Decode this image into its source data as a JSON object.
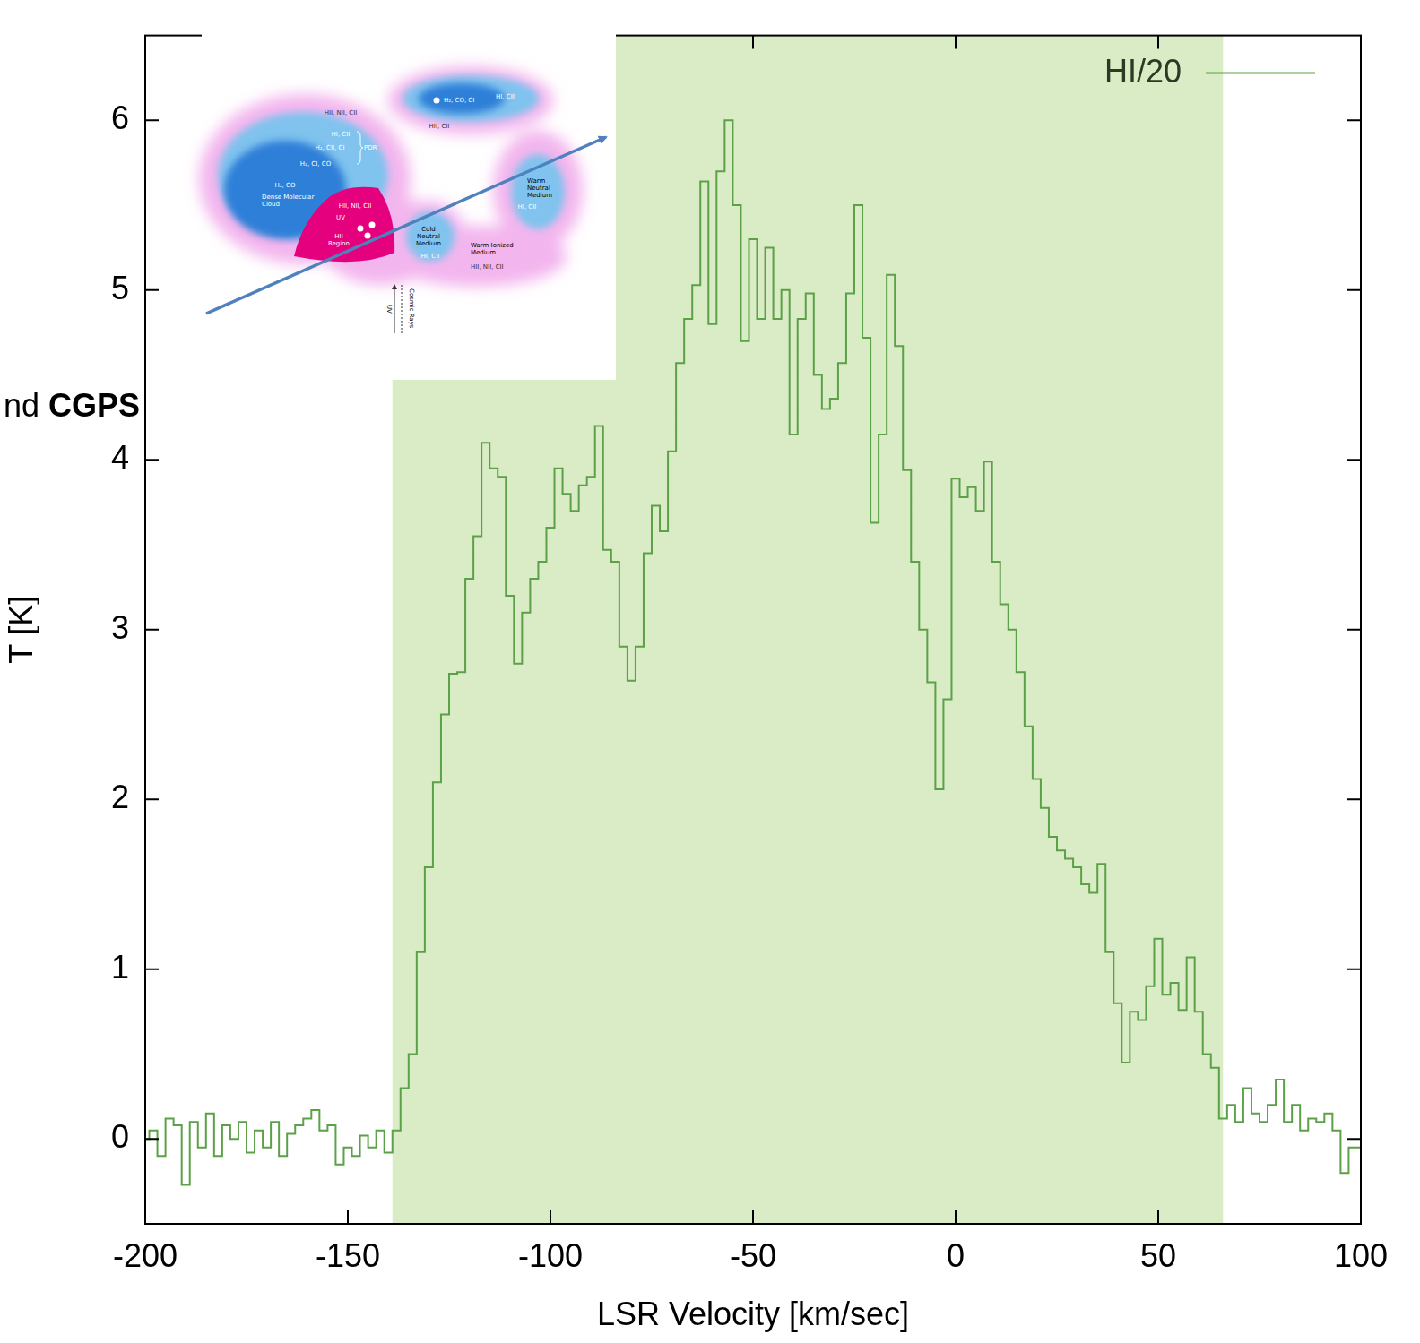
{
  "chart_data": {
    "type": "line",
    "x_label": "LSR Velocity [km/sec]",
    "y_label": "T [K]",
    "x": [
      -200,
      -198,
      -196,
      -194,
      -192,
      -190,
      -188,
      -186,
      -184,
      -182,
      -180,
      -178,
      -176,
      -174,
      -172,
      -170,
      -168,
      -166,
      -164,
      -162,
      -160,
      -158,
      -156,
      -154,
      -152,
      -150,
      -148,
      -146,
      -144,
      -142,
      -140,
      -138,
      -136,
      -134,
      -132,
      -130,
      -128,
      -126,
      -124,
      -122,
      -120,
      -118,
      -116,
      -114,
      -112,
      -110,
      -108,
      -106,
      -104,
      -102,
      -100,
      -98,
      -96,
      -94,
      -92,
      -90,
      -88,
      -86,
      -84,
      -82,
      -80,
      -78,
      -76,
      -74,
      -72,
      -70,
      -68,
      -66,
      -64,
      -62,
      -60,
      -58,
      -56,
      -54,
      -52,
      -50,
      -48,
      -46,
      -44,
      -42,
      -40,
      -38,
      -36,
      -34,
      -32,
      -30,
      -28,
      -26,
      -24,
      -22,
      -20,
      -18,
      -16,
      -14,
      -12,
      -10,
      -8,
      -6,
      -4,
      -2,
      0,
      2,
      4,
      6,
      8,
      10,
      12,
      14,
      16,
      18,
      20,
      22,
      24,
      26,
      28,
      30,
      32,
      34,
      36,
      38,
      40,
      42,
      44,
      46,
      48,
      50,
      52,
      54,
      56,
      58,
      60,
      62,
      64,
      66,
      68,
      70,
      72,
      74,
      76,
      78,
      80,
      82,
      84,
      86,
      88,
      90,
      92,
      94,
      96,
      98,
      100
    ],
    "series": [
      {
        "name": "HI/20",
        "color": "#5ca047",
        "line_style": "steps",
        "values": [
          0.0,
          0.05,
          -0.1,
          0.12,
          0.08,
          -0.27,
          0.1,
          -0.05,
          0.15,
          -0.1,
          0.08,
          0.0,
          0.1,
          -0.08,
          0.05,
          -0.05,
          0.1,
          -0.1,
          0.03,
          0.08,
          0.12,
          0.17,
          0.05,
          0.08,
          -0.15,
          -0.05,
          -0.1,
          0.02,
          -0.05,
          0.05,
          -0.08,
          0.05,
          0.3,
          0.5,
          1.1,
          1.6,
          2.1,
          2.5,
          2.74,
          2.75,
          3.3,
          3.55,
          4.1,
          3.95,
          3.9,
          3.2,
          2.8,
          3.1,
          3.3,
          3.4,
          3.6,
          3.95,
          3.8,
          3.7,
          3.85,
          3.9,
          4.2,
          3.47,
          3.4,
          2.9,
          2.7,
          2.9,
          3.45,
          3.73,
          3.58,
          4.05,
          4.57,
          4.83,
          5.03,
          5.64,
          4.8,
          5.7,
          6.0,
          5.5,
          4.7,
          5.3,
          4.83,
          5.25,
          4.83,
          5.0,
          4.15,
          4.83,
          4.98,
          4.5,
          4.3,
          4.36,
          4.57,
          4.98,
          5.5,
          4.72,
          3.63,
          4.15,
          5.09,
          4.67,
          3.94,
          3.4,
          3.0,
          2.69,
          2.06,
          2.59,
          3.89,
          3.78,
          3.84,
          3.7,
          3.99,
          3.4,
          3.15,
          3.0,
          2.75,
          2.43,
          2.12,
          1.95,
          1.78,
          1.7,
          1.65,
          1.6,
          1.5,
          1.45,
          1.62,
          1.1,
          0.8,
          0.45,
          0.75,
          0.7,
          0.9,
          1.18,
          0.85,
          0.92,
          0.76,
          1.07,
          0.75,
          0.5,
          0.42,
          0.12,
          0.2,
          0.1,
          0.3,
          0.15,
          0.1,
          0.2,
          0.35,
          0.1,
          0.2,
          0.05,
          0.12,
          0.1,
          0.15,
          0.05,
          -0.2,
          -0.05,
          -0.05
        ]
      }
    ],
    "xlim": [
      -200,
      100
    ],
    "xticks": [
      -200,
      -150,
      -100,
      -50,
      0,
      50,
      100
    ],
    "ylim": [
      -0.5,
      6.5
    ],
    "yticks": [
      0,
      1,
      2,
      3,
      4,
      5,
      6
    ],
    "grid": false,
    "legend": "top right",
    "band": {
      "x": [
        -139,
        66
      ],
      "color": "#d9ecc6"
    },
    "annotations": [
      {
        "text": "nd CGPS"
      }
    ]
  },
  "inset": {
    "labels": [
      "HII, NII, CII",
      "H₂, CO, CI",
      "HI, CII",
      "HII, CII",
      "HI, CII",
      "H₂, CII, CI",
      "PDR",
      "H₂, CI, CO",
      "H₂, CO",
      "Dense Molecular Cloud",
      "HII, NII, CII",
      "UV",
      "HII Region",
      "Cold Neutral Medium",
      "HI, CII",
      "Warm Ionized Medium",
      "HII, NII, CII",
      "Warm Neutral Medium",
      "HI, CII",
      "Cosmic Rays",
      "UV"
    ]
  }
}
